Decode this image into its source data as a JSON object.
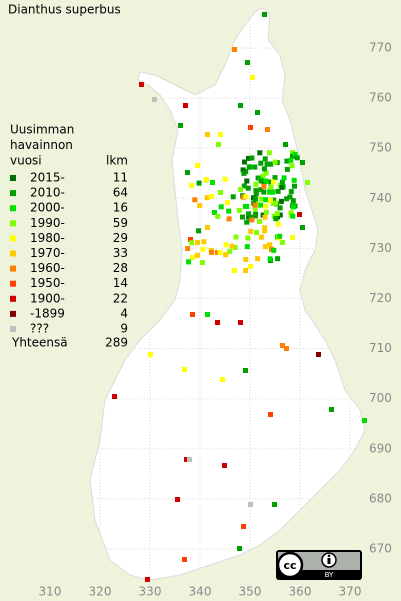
{
  "title": "Dianthus superbus",
  "legend": {
    "heading": [
      "Uusimman",
      "havainnon",
      "vuosi"
    ],
    "count_heading": "lkm",
    "rows": [
      {
        "label": "2015-",
        "count": 11,
        "color": "#006e00"
      },
      {
        "label": "2010-",
        "count": 64,
        "color": "#00a000"
      },
      {
        "label": "2000-",
        "count": 16,
        "color": "#00e000"
      },
      {
        "label": "1990-",
        "count": 59,
        "color": "#80ff00"
      },
      {
        "label": "1980-",
        "count": 29,
        "color": "#ffff00"
      },
      {
        "label": "1970-",
        "count": 33,
        "color": "#ffc800"
      },
      {
        "label": "1960-",
        "count": 28,
        "color": "#ff8000"
      },
      {
        "label": "1950-",
        "count": 14,
        "color": "#ff4000"
      },
      {
        "label": "1900-",
        "count": 22,
        "color": "#d00000"
      },
      {
        "label": "-1899",
        "count": 4,
        "color": "#800000"
      },
      {
        "label": "???",
        "count": 9,
        "color": "#c0c0c0"
      }
    ],
    "total": {
      "label": "Yhteensä",
      "count": 289
    }
  },
  "axes": {
    "x_ticks": [
      310,
      320,
      330,
      340,
      350,
      360,
      370
    ],
    "y_ticks": [
      770,
      760,
      750,
      740,
      730,
      720,
      710,
      700,
      690,
      680,
      670
    ]
  },
  "license": {
    "icon": "cc",
    "label": "BY"
  }
}
